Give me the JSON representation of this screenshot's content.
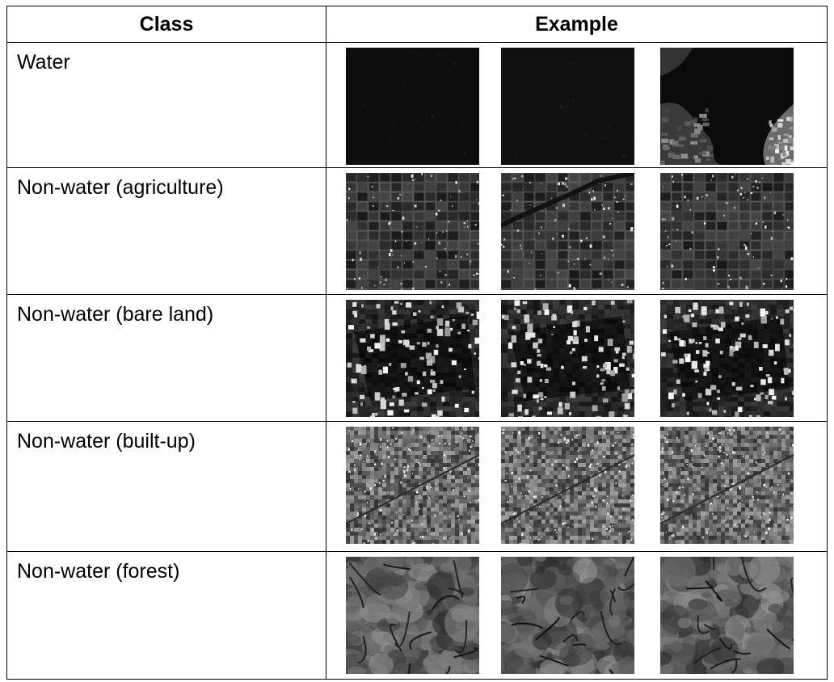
{
  "table": {
    "headers": {
      "class": "Class",
      "example": "Example"
    },
    "rows": [
      {
        "label": "Water",
        "examples": [
          {
            "icon": "sar-water-open",
            "tone": "#0d0d0d"
          },
          {
            "icon": "sar-water-open",
            "tone": "#111111"
          },
          {
            "icon": "sar-water-shoreline",
            "tone": "#0b0b0b"
          }
        ]
      },
      {
        "label": "Non-water (agriculture)",
        "examples": [
          {
            "icon": "sar-agriculture-fields",
            "tone": "#2e2e2e"
          },
          {
            "icon": "sar-agriculture-river",
            "tone": "#262626"
          },
          {
            "icon": "sar-agriculture-fields",
            "tone": "#2a2a2a"
          }
        ]
      },
      {
        "label": "Non-water (bare land)",
        "examples": [
          {
            "icon": "sar-bare-land-patch",
            "tone": "#2b2b2b"
          },
          {
            "icon": "sar-bare-land-patch",
            "tone": "#2f2f2f"
          },
          {
            "icon": "sar-bare-land-patch",
            "tone": "#262626"
          }
        ]
      },
      {
        "label": "Non-water (built-up)",
        "examples": [
          {
            "icon": "sar-built-up-urban",
            "tone": "#5a5a5a"
          },
          {
            "icon": "sar-built-up-urban",
            "tone": "#4a4a4a"
          },
          {
            "icon": "sar-built-up-urban",
            "tone": "#505050"
          }
        ]
      },
      {
        "label": "Non-water (forest)",
        "examples": [
          {
            "icon": "sar-forest-terrain",
            "tone": "#4e4e4e"
          },
          {
            "icon": "sar-forest-terrain",
            "tone": "#555555"
          },
          {
            "icon": "sar-forest-terrain",
            "tone": "#5c5c5c"
          }
        ]
      }
    ]
  }
}
